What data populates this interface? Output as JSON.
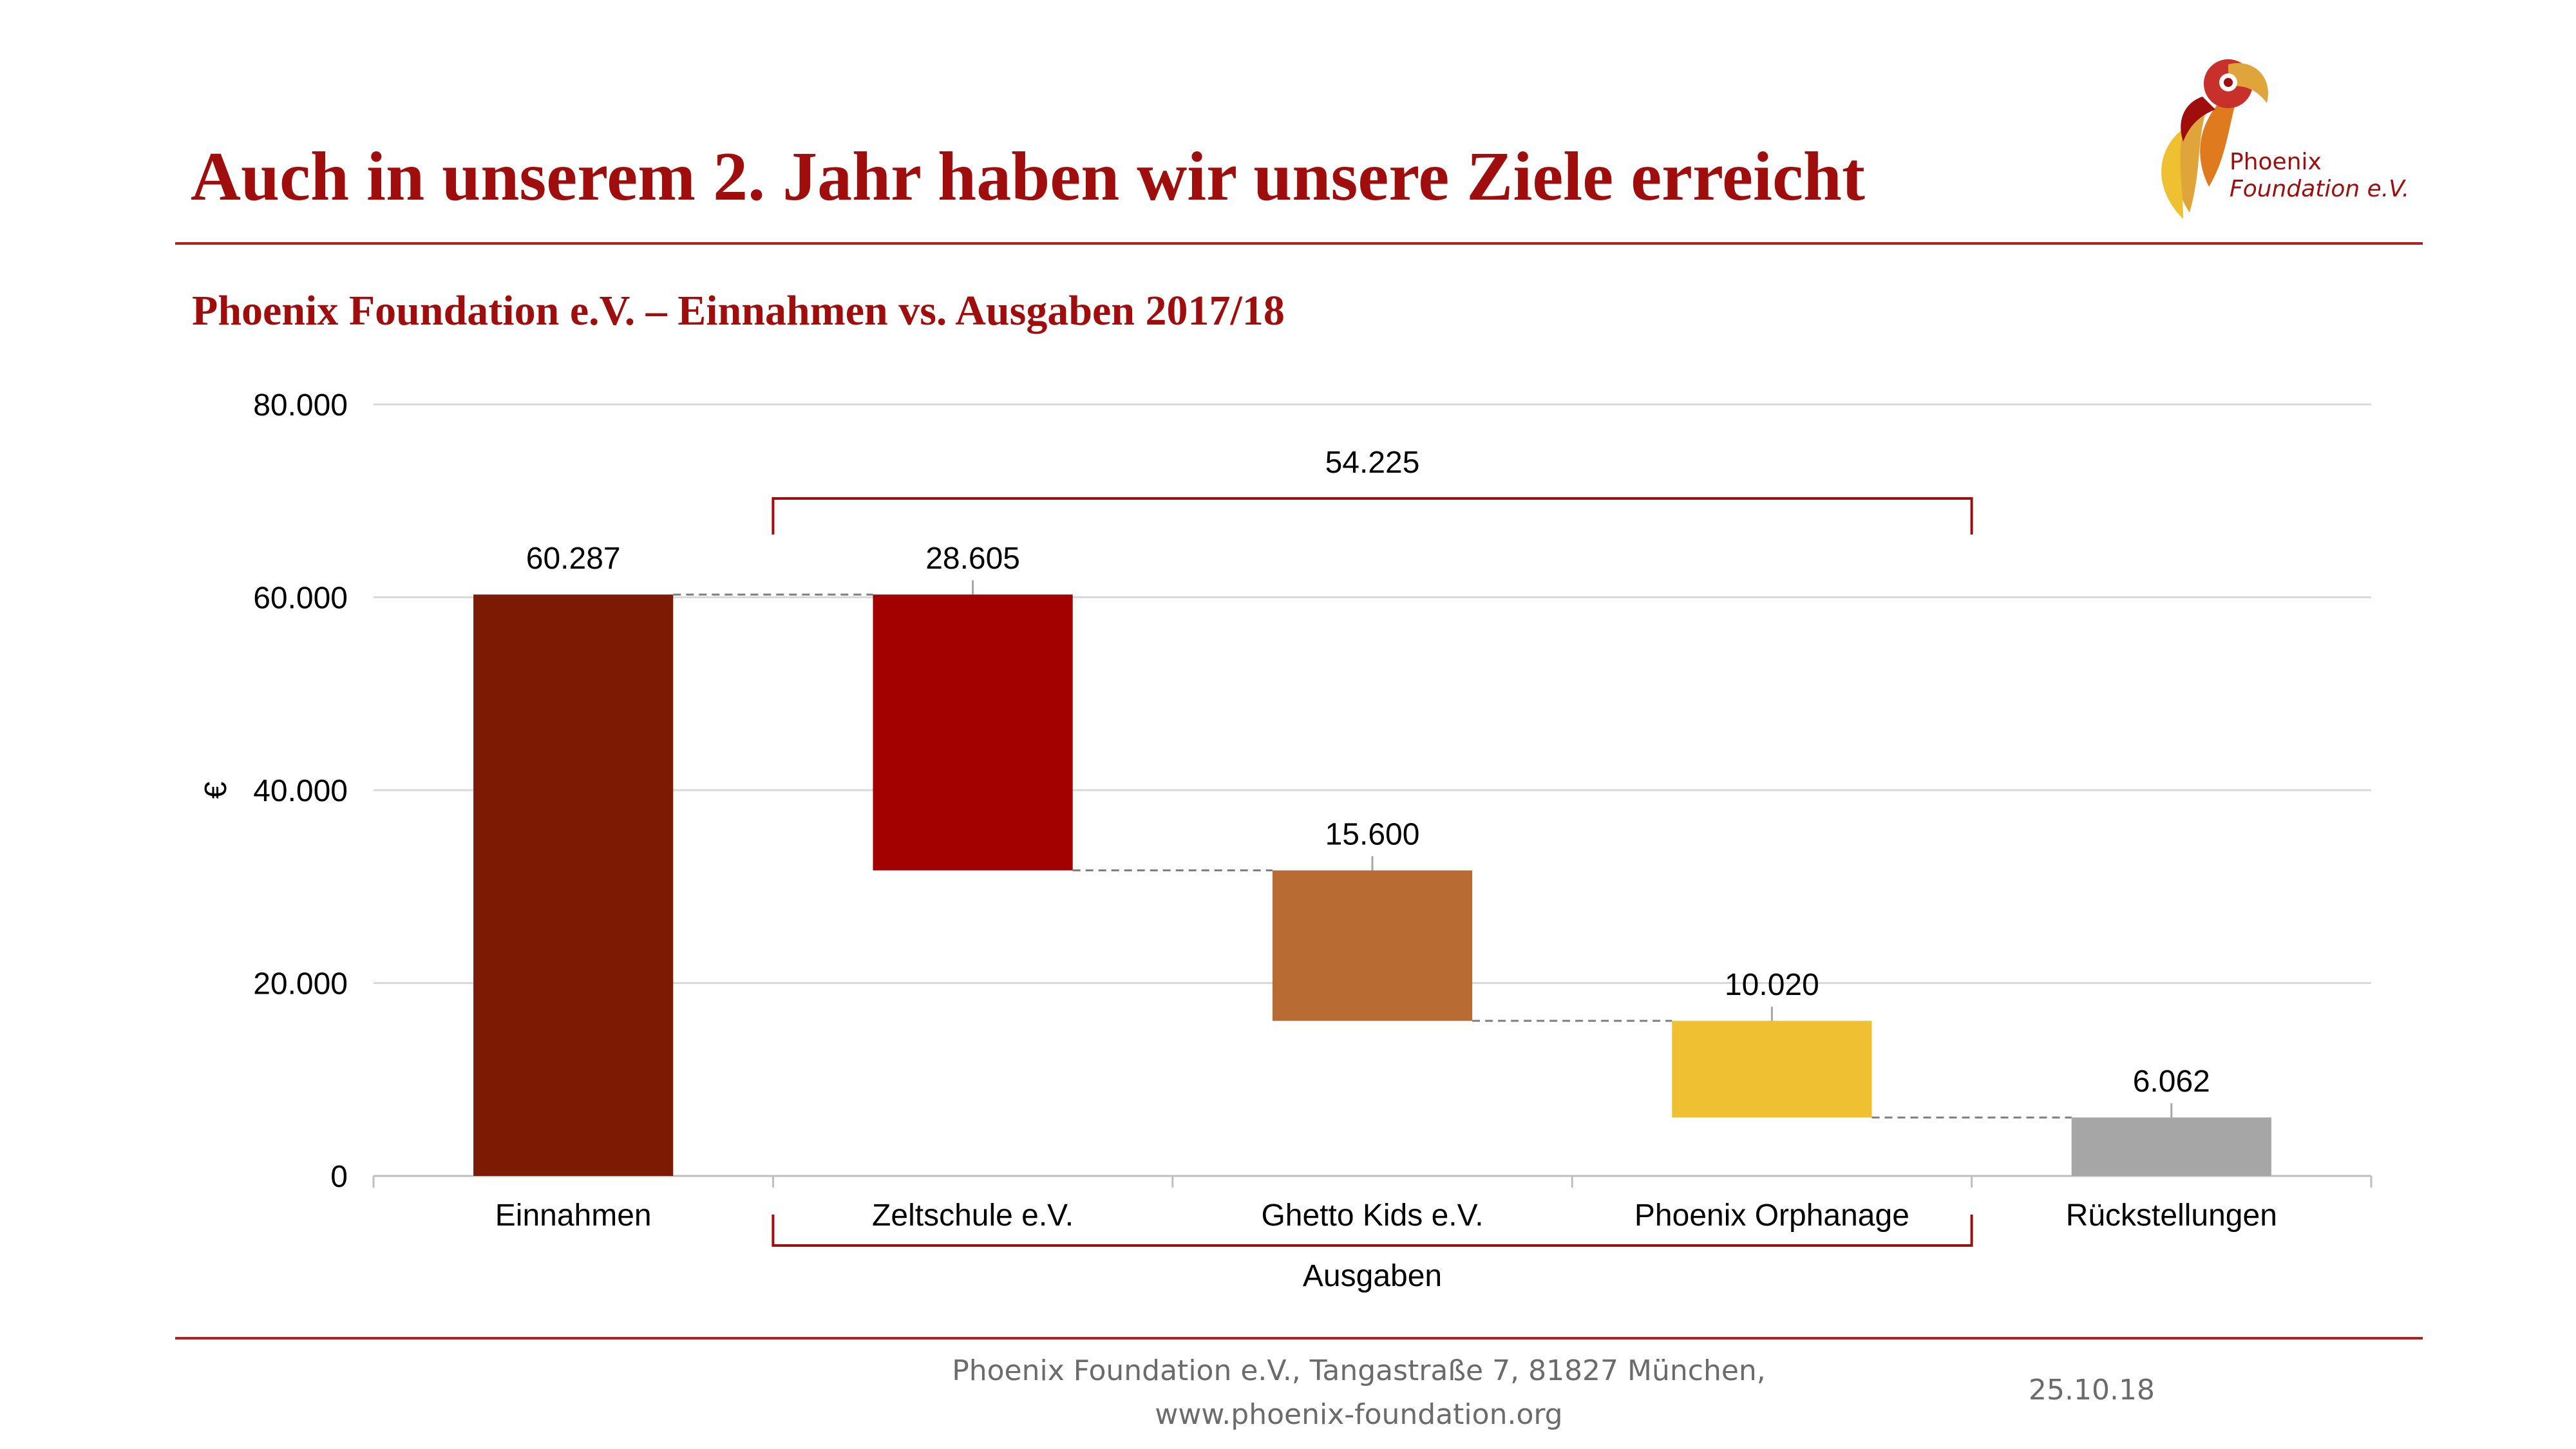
{
  "slide": {
    "title": "Auch in unserem 2. Jahr haben wir unsere Ziele erreicht",
    "logo": {
      "line1": "Phoenix",
      "line2": "Foundation e.V."
    },
    "footer": {
      "address": "Phoenix Foundation e.V., Tangastraße 7, 81827 München,",
      "website": "www.phoenix-foundation.org",
      "date": "25.10.18"
    },
    "accent_color": "#a00d0d"
  },
  "chart_data": {
    "type": "bar",
    "variant": "waterfall",
    "title": "Phoenix Foundation e.V. – Einnahmen vs. Ausgaben 2017/18",
    "ylabel": "€",
    "xlabel": "",
    "ylim": [
      0,
      80000
    ],
    "yticks": [
      0,
      20000,
      40000,
      60000,
      80000
    ],
    "ytick_labels": [
      "0",
      "20.000",
      "40.000",
      "60.000",
      "80.000"
    ],
    "grid": true,
    "categories": [
      "Einnahmen",
      "Zeltschule e.V.",
      "Ghetto Kids e.V.",
      "Phoenix Orphanage",
      "Rückstellungen"
    ],
    "bars": [
      {
        "label": "Einnahmen",
        "base": 0,
        "top": 60287,
        "value": 60287,
        "value_label": "60.287",
        "color": "#7d1a03"
      },
      {
        "label": "Zeltschule e.V.",
        "base": 31682,
        "top": 60287,
        "value": 28605,
        "value_label": "28.605",
        "color": "#a30000"
      },
      {
        "label": "Ghetto Kids e.V.",
        "base": 16082,
        "top": 31682,
        "value": 15600,
        "value_label": "15.600",
        "color": "#b86b33"
      },
      {
        "label": "Phoenix Orphanage",
        "base": 6062,
        "top": 16082,
        "value": 10020,
        "value_label": "10.020",
        "color": "#efc132"
      },
      {
        "label": "Rückstellungen",
        "base": 0,
        "top": 6062,
        "value": 6062,
        "value_label": "6.062",
        "color": "#a6a6a6"
      }
    ],
    "group_annotation": {
      "label": "Ausgaben",
      "from_category": 1,
      "to_category": 3,
      "total": 54225,
      "total_label": "54.225",
      "color": "#a00d0d"
    }
  }
}
